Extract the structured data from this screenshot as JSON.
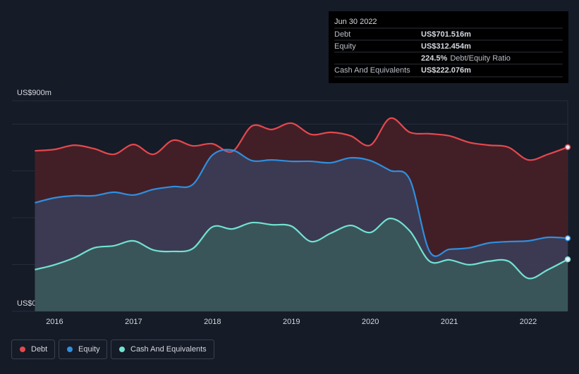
{
  "chart_data": {
    "type": "area-line",
    "x": [
      2015.75,
      2016.0,
      2016.25,
      2016.5,
      2016.75,
      2017.0,
      2017.25,
      2017.5,
      2017.75,
      2018.0,
      2018.25,
      2018.5,
      2018.75,
      2019.0,
      2019.25,
      2019.5,
      2019.75,
      2020.0,
      2020.25,
      2020.5,
      2020.75,
      2021.0,
      2021.25,
      2021.5,
      2021.75,
      2022.0,
      2022.25,
      2022.5
    ],
    "series": [
      {
        "name": "Debt",
        "color": "#e5484d",
        "fill": "#4a2027",
        "values": [
          686,
          692,
          710,
          695,
          671,
          713,
          671,
          731,
          707,
          716,
          683,
          792,
          777,
          804,
          756,
          765,
          750,
          710,
          825,
          765,
          759,
          750,
          722,
          710,
          701,
          647,
          671,
          701.516
        ]
      },
      {
        "name": "Equity",
        "color": "#2f8fe0",
        "fill": "#3a405a",
        "values": [
          464,
          485,
          494,
          494,
          509,
          497,
          521,
          533,
          542,
          668,
          689,
          644,
          647,
          641,
          641,
          635,
          656,
          644,
          602,
          563,
          256,
          265,
          271,
          292,
          298,
          301,
          316,
          312.454
        ]
      },
      {
        "name": "Cash And Equivalents",
        "color": "#70e3cf",
        "fill": "#3b5a5c",
        "values": [
          178,
          199,
          229,
          271,
          280,
          301,
          262,
          256,
          268,
          361,
          352,
          379,
          370,
          364,
          298,
          334,
          367,
          337,
          397,
          343,
          214,
          220,
          199,
          214,
          214,
          141,
          178,
          222.076
        ]
      }
    ],
    "xlim": [
      2015.46,
      2022.5
    ],
    "xticks": [
      2016,
      2017,
      2018,
      2019,
      2020,
      2021,
      2022
    ],
    "ylim": [
      0,
      900
    ],
    "yticks": [
      {
        "value": 0,
        "label": "US$0"
      },
      {
        "value": 900,
        "label": "US$900m"
      }
    ],
    "grid": [
      0,
      200,
      400,
      600,
      800,
      900
    ],
    "tooltip": {
      "date": "Jun 30 2022",
      "rows": [
        {
          "label": "Debt",
          "value": "US$701.516m",
          "color": "#e5484d"
        },
        {
          "label": "Equity",
          "value": "US$312.454m",
          "color": "#2f8fe0"
        },
        {
          "label": "Debt/Equity Ratio",
          "value": "224.5%",
          "color": "#ffffff"
        },
        {
          "label": "Cash And Equivalents",
          "value": "US$222.076m",
          "color": "#70e3cf"
        }
      ]
    }
  }
}
